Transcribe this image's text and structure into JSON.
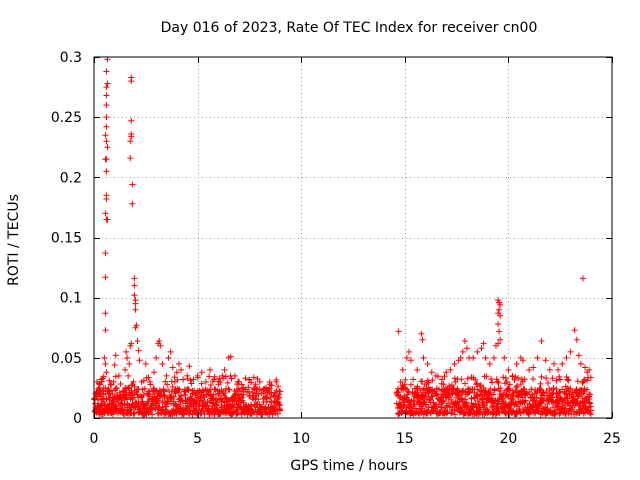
{
  "chart_data": {
    "type": "scatter",
    "title": "Day 016 of 2023, Rate Of TEC Index for receiver cn00",
    "xlabel": "GPS time / hours",
    "ylabel": "ROTI / TECUs",
    "xlim": [
      0,
      25
    ],
    "ylim": [
      0,
      0.3
    ],
    "xticks": [
      0,
      5,
      10,
      15,
      20,
      25
    ],
    "xtick_labels": [
      "0",
      "5",
      "10",
      "15",
      "20",
      "25"
    ],
    "yticks": [
      0,
      0.05,
      0.1,
      0.15,
      0.2,
      0.25,
      0.3
    ],
    "ytick_labels": [
      "0",
      "0.05",
      "0.1",
      "0.15",
      "0.2",
      "0.25",
      "0.3"
    ],
    "grid": true,
    "marker": "+",
    "color": "#ff0000",
    "series": [
      {
        "name": "ROTI",
        "points": [
          [
            0.05,
            0.012
          ],
          [
            0.1,
            0.02
          ],
          [
            0.15,
            0.03
          ],
          [
            0.2,
            0.015
          ],
          [
            0.25,
            0.025
          ],
          [
            0.3,
            0.018
          ],
          [
            0.35,
            0.032
          ],
          [
            0.4,
            0.01
          ],
          [
            0.45,
            0.022
          ],
          [
            0.5,
            0.05
          ],
          [
            0.55,
            0.045
          ],
          [
            0.6,
            0.038
          ],
          [
            0.55,
            0.073
          ],
          [
            0.55,
            0.087
          ],
          [
            0.55,
            0.117
          ],
          [
            0.55,
            0.137
          ],
          [
            0.55,
            0.17
          ],
          [
            0.6,
            0.182
          ],
          [
            0.6,
            0.185
          ],
          [
            0.6,
            0.205
          ],
          [
            0.6,
            0.215
          ],
          [
            0.65,
            0.165
          ],
          [
            0.55,
            0.215
          ],
          [
            0.6,
            0.165
          ],
          [
            0.55,
            0.235
          ],
          [
            0.6,
            0.242
          ],
          [
            0.6,
            0.25
          ],
          [
            0.6,
            0.26
          ],
          [
            0.6,
            0.268
          ],
          [
            0.6,
            0.275
          ],
          [
            0.65,
            0.278
          ],
          [
            0.6,
            0.288
          ],
          [
            0.65,
            0.298
          ],
          [
            0.65,
            0.225
          ],
          [
            0.6,
            0.23
          ],
          [
            0.7,
            0.02
          ],
          [
            0.75,
            0.015
          ],
          [
            0.8,
            0.028
          ],
          [
            0.85,
            0.012
          ],
          [
            0.9,
            0.02
          ],
          [
            0.95,
            0.03
          ],
          [
            1.0,
            0.044
          ],
          [
            1.05,
            0.052
          ],
          [
            1.1,
            0.025
          ],
          [
            1.2,
            0.035
          ],
          [
            1.3,
            0.018
          ],
          [
            1.4,
            0.022
          ],
          [
            1.5,
            0.04
          ],
          [
            1.55,
            0.055
          ],
          [
            1.6,
            0.05
          ],
          [
            1.65,
            0.035
          ],
          [
            1.7,
            0.045
          ],
          [
            1.75,
            0.06
          ],
          [
            1.8,
            0.062
          ],
          [
            1.85,
            0.02
          ],
          [
            1.9,
            0.03
          ],
          [
            1.75,
            0.216
          ],
          [
            1.75,
            0.23
          ],
          [
            1.8,
            0.234
          ],
          [
            1.8,
            0.236
          ],
          [
            1.8,
            0.247
          ],
          [
            1.8,
            0.28
          ],
          [
            1.8,
            0.283
          ],
          [
            1.85,
            0.194
          ],
          [
            1.85,
            0.178
          ],
          [
            1.95,
            0.116
          ],
          [
            1.95,
            0.11
          ],
          [
            1.95,
            0.102
          ],
          [
            2.0,
            0.098
          ],
          [
            2.0,
            0.095
          ],
          [
            2.0,
            0.09
          ],
          [
            2.05,
            0.077
          ],
          [
            2.0,
            0.075
          ],
          [
            2.1,
            0.064
          ],
          [
            2.15,
            0.056
          ],
          [
            2.2,
            0.048
          ],
          [
            2.3,
            0.03
          ],
          [
            2.5,
            0.045
          ],
          [
            2.7,
            0.03
          ],
          [
            2.9,
            0.038
          ],
          [
            3.0,
            0.05
          ],
          [
            3.1,
            0.062
          ],
          [
            3.15,
            0.064
          ],
          [
            3.2,
            0.06
          ],
          [
            3.3,
            0.045
          ],
          [
            3.5,
            0.035
          ],
          [
            3.6,
            0.05
          ],
          [
            3.7,
            0.055
          ],
          [
            3.8,
            0.042
          ],
          [
            3.9,
            0.03
          ],
          [
            4.0,
            0.038
          ],
          [
            4.1,
            0.045
          ],
          [
            4.2,
            0.04
          ],
          [
            4.3,
            0.032
          ],
          [
            4.5,
            0.035
          ],
          [
            4.6,
            0.043
          ],
          [
            4.8,
            0.032
          ],
          [
            5.0,
            0.035
          ],
          [
            5.2,
            0.038
          ],
          [
            5.4,
            0.03
          ],
          [
            5.6,
            0.04
          ],
          [
            5.8,
            0.032
          ],
          [
            6.0,
            0.028
          ],
          [
            6.2,
            0.035
          ],
          [
            6.3,
            0.04
          ],
          [
            6.5,
            0.05
          ],
          [
            6.6,
            0.051
          ],
          [
            6.8,
            0.035
          ],
          [
            7.0,
            0.03
          ],
          [
            7.2,
            0.025
          ],
          [
            7.5,
            0.032
          ],
          [
            7.8,
            0.028
          ],
          [
            8.0,
            0.03
          ],
          [
            8.3,
            0.025
          ],
          [
            8.5,
            0.028
          ],
          [
            8.8,
            0.03
          ],
          [
            8.95,
            0.022
          ],
          [
            14.7,
            0.072
          ],
          [
            14.8,
            0.03
          ],
          [
            14.9,
            0.04
          ],
          [
            15.0,
            0.028
          ],
          [
            15.1,
            0.05
          ],
          [
            15.2,
            0.055
          ],
          [
            15.3,
            0.048
          ],
          [
            15.4,
            0.032
          ],
          [
            15.6,
            0.04
          ],
          [
            15.8,
            0.07
          ],
          [
            15.85,
            0.065
          ],
          [
            15.9,
            0.05
          ],
          [
            16.1,
            0.045
          ],
          [
            16.3,
            0.038
          ],
          [
            16.5,
            0.035
          ],
          [
            16.8,
            0.032
          ],
          [
            17.0,
            0.038
          ],
          [
            17.2,
            0.04
          ],
          [
            17.4,
            0.045
          ],
          [
            17.6,
            0.048
          ],
          [
            17.7,
            0.05
          ],
          [
            17.8,
            0.055
          ],
          [
            17.9,
            0.064
          ],
          [
            18.0,
            0.058
          ],
          [
            18.1,
            0.05
          ],
          [
            18.3,
            0.05
          ],
          [
            18.5,
            0.055
          ],
          [
            18.7,
            0.058
          ],
          [
            18.8,
            0.062
          ],
          [
            18.9,
            0.05
          ],
          [
            19.1,
            0.045
          ],
          [
            19.3,
            0.05
          ],
          [
            19.4,
            0.06
          ],
          [
            19.5,
            0.098
          ],
          [
            19.55,
            0.096
          ],
          [
            19.6,
            0.094
          ],
          [
            19.55,
            0.09
          ],
          [
            19.5,
            0.087
          ],
          [
            19.6,
            0.085
          ],
          [
            19.5,
            0.078
          ],
          [
            19.55,
            0.072
          ],
          [
            19.6,
            0.065
          ],
          [
            19.5,
            0.062
          ],
          [
            19.8,
            0.05
          ],
          [
            20.0,
            0.04
          ],
          [
            20.2,
            0.035
          ],
          [
            20.4,
            0.045
          ],
          [
            20.6,
            0.05
          ],
          [
            20.7,
            0.048
          ],
          [
            21.0,
            0.04
          ],
          [
            21.2,
            0.042
          ],
          [
            21.4,
            0.05
          ],
          [
            21.6,
            0.064
          ],
          [
            21.8,
            0.048
          ],
          [
            22.0,
            0.04
          ],
          [
            22.2,
            0.045
          ],
          [
            22.4,
            0.04
          ],
          [
            22.6,
            0.045
          ],
          [
            22.8,
            0.05
          ],
          [
            23.0,
            0.055
          ],
          [
            23.2,
            0.073
          ],
          [
            23.3,
            0.065
          ],
          [
            23.4,
            0.052
          ],
          [
            23.5,
            0.045
          ],
          [
            23.6,
            0.116
          ],
          [
            23.7,
            0.042
          ],
          [
            23.8,
            0.038
          ],
          [
            23.9,
            0.04
          ]
        ]
      }
    ],
    "dense_band": {
      "description": "continuous cloud of points between ROTI values",
      "ranges": [
        [
          0,
          9
        ],
        [
          14.6,
          24
        ]
      ],
      "ymin": 0.003,
      "ymax": 0.025
    }
  }
}
